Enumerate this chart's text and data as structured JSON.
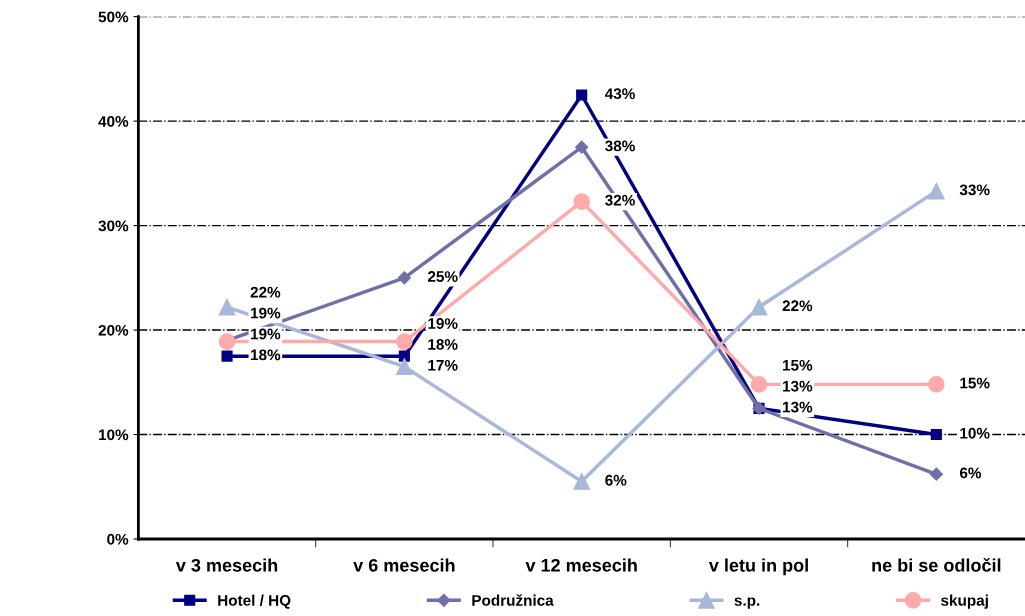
{
  "chart_data": {
    "type": "line",
    "categories": [
      "v 3 mesecih",
      "v 6 mesecih",
      "v 12 mesecih",
      "v letu in pol",
      "ne bi se odločil"
    ],
    "series": [
      {
        "name": "Hotel / HQ",
        "color": "#000080",
        "marker": "square",
        "values": [
          17.5,
          17.5,
          42.5,
          12.5,
          10
        ],
        "value_labels": [
          "18%",
          "18%",
          "43%",
          "13%",
          "10%"
        ]
      },
      {
        "name": "Podružnica",
        "color": "#7070a8",
        "marker": "diamond",
        "values": [
          19,
          25,
          37.5,
          12.5,
          6.2
        ],
        "value_labels": [
          "19%",
          "25%",
          "38%",
          "13%",
          "6%"
        ]
      },
      {
        "name": "s.p.",
        "color": "#a8b8d8",
        "marker": "triangle",
        "values": [
          22.2,
          16.5,
          5.5,
          22.2,
          33.3
        ],
        "value_labels": [
          "22%",
          "17%",
          "6%",
          "22%",
          "33%"
        ]
      },
      {
        "name": "skupaj",
        "color": "#ffaaaa",
        "marker": "circle",
        "values": [
          18.9,
          18.9,
          32.3,
          14.8,
          14.8
        ],
        "value_labels": [
          "19%",
          "19%",
          "32%",
          "15%",
          "15%"
        ]
      }
    ],
    "ylim": [
      0,
      50
    ],
    "yticks": [
      {
        "value": 0,
        "label": "0%"
      },
      {
        "value": 10,
        "label": "10%"
      },
      {
        "value": 20,
        "label": "20%"
      },
      {
        "value": 30,
        "label": "30%"
      },
      {
        "value": 40,
        "label": "40%"
      },
      {
        "value": 50,
        "label": "50%"
      }
    ],
    "grid": "y",
    "legend": "bottom",
    "line_style": "solid"
  }
}
